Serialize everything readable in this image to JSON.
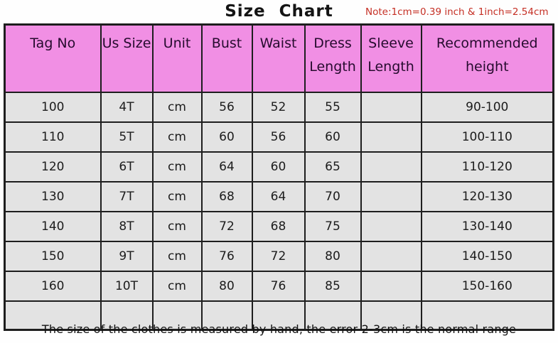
{
  "title": "Size Chart",
  "note": "Note:1cm=0.39 inch & 1inch=2.54cm",
  "footer": "The size of the clothes is measured by hand, the error 2-3cm is the normal range",
  "colors": {
    "header_bg": "#f18fe4",
    "row_bg": "#e3e3e3",
    "border": "#1e1e1e",
    "note_red": "#c52f24",
    "title_color": "#141414"
  },
  "chart_data": {
    "type": "table",
    "title": "Size Chart",
    "columns": [
      "Tag No",
      "Us Size",
      "Unit",
      "Bust",
      "Waist",
      "Dress Length",
      "Sleeve Length",
      "Recommended height"
    ],
    "rows": [
      [
        "100",
        "4T",
        "cm",
        "56",
        "52",
        "55",
        "",
        "90-100"
      ],
      [
        "110",
        "5T",
        "cm",
        "60",
        "56",
        "60",
        "",
        "100-110"
      ],
      [
        "120",
        "6T",
        "cm",
        "64",
        "60",
        "65",
        "",
        "110-120"
      ],
      [
        "130",
        "7T",
        "cm",
        "68",
        "64",
        "70",
        "",
        "120-130"
      ],
      [
        "140",
        "8T",
        "cm",
        "72",
        "68",
        "75",
        "",
        "130-140"
      ],
      [
        "150",
        "9T",
        "cm",
        "76",
        "72",
        "80",
        "",
        "140-150"
      ],
      [
        "160",
        "10T",
        "cm",
        "80",
        "76",
        "85",
        "",
        "150-160"
      ],
      [
        "",
        "",
        "",
        "",
        "",
        "",
        "",
        ""
      ]
    ]
  }
}
